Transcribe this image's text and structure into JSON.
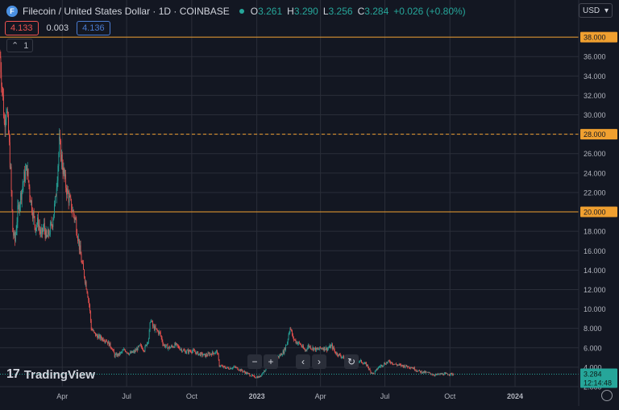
{
  "header": {
    "symbol_icon": "F",
    "symbol_title": "Filecoin / United States Dollar · 1D · COINBASE",
    "ohlc": {
      "o_label": "O",
      "o": "3.261",
      "h_label": "H",
      "h": "3.290",
      "l_label": "L",
      "l": "3.256",
      "c_label": "C",
      "c": "3.284",
      "change": "+0.026 (+0.80%)"
    },
    "sell_price": "4.133",
    "spread": "0.003",
    "buy_price": "4.136",
    "indicators_collapse_label": "1",
    "currency": "USD"
  },
  "toolbar": {
    "zoom_out": "−",
    "zoom_in": "+",
    "scroll_left": "‹",
    "scroll_right": "›",
    "reset": "↻"
  },
  "branding": {
    "logo_mark": "17",
    "logo_text": "TradingView"
  },
  "colors": {
    "background": "#131722",
    "grid": "#2a2e39",
    "up": "#26a69a",
    "down": "#ef5350",
    "level_line": "#f0a030",
    "last_price": "#26a69a"
  },
  "chart_data": {
    "type": "candlestick",
    "ylim": [
      2.0,
      40.0
    ],
    "y_ticks": [
      "2.000",
      "4.000",
      "6.000",
      "8.000",
      "10.000",
      "12.000",
      "14.000",
      "16.000",
      "18.000",
      "20.000",
      "22.000",
      "24.000",
      "26.000",
      "28.000",
      "30.000",
      "32.000",
      "34.000",
      "36.000",
      "38.000"
    ],
    "x_ticks": [
      {
        "label": "Apr",
        "date": "2022-04-01"
      },
      {
        "label": "Jul",
        "date": "2022-07-01"
      },
      {
        "label": "Oct",
        "date": "2022-10-01"
      },
      {
        "label": "2023",
        "date": "2023-01-01"
      },
      {
        "label": "Apr",
        "date": "2023-04-01"
      },
      {
        "label": "Jul",
        "date": "2023-07-01"
      },
      {
        "label": "Oct",
        "date": "2023-10-01"
      },
      {
        "label": "2024",
        "date": "2024-01-01"
      }
    ],
    "x_range": [
      "2022-01-03",
      "2024-03-31"
    ],
    "horizontal_lines": [
      {
        "price": 38.0,
        "style": "solid",
        "label": "38.000"
      },
      {
        "price": 28.0,
        "style": "dashed",
        "label": "28.000"
      },
      {
        "price": 20.0,
        "style": "solid",
        "label": "20.000"
      }
    ],
    "last_price": {
      "price": 3.284,
      "label": "3.284",
      "countdown": "12:14:48"
    },
    "price_path": [
      [
        "2022-01-03",
        36.0
      ],
      [
        "2022-01-06",
        33.0
      ],
      [
        "2022-01-09",
        29.0
      ],
      [
        "2022-01-12",
        31.0
      ],
      [
        "2022-01-15",
        28.0
      ],
      [
        "2022-01-18",
        24.0
      ],
      [
        "2022-01-21",
        18.0
      ],
      [
        "2022-01-24",
        17.0
      ],
      [
        "2022-01-28",
        20.0
      ],
      [
        "2022-02-02",
        22.0
      ],
      [
        "2022-02-06",
        23.5
      ],
      [
        "2022-02-10",
        24.5
      ],
      [
        "2022-02-14",
        22.0
      ],
      [
        "2022-02-18",
        20.0
      ],
      [
        "2022-02-22",
        18.5
      ],
      [
        "2022-02-26",
        19.0
      ],
      [
        "2022-03-02",
        17.5
      ],
      [
        "2022-03-06",
        18.5
      ],
      [
        "2022-03-10",
        17.2
      ],
      [
        "2022-03-14",
        18.0
      ],
      [
        "2022-03-18",
        19.0
      ],
      [
        "2022-03-22",
        21.0
      ],
      [
        "2022-03-26",
        25.0
      ],
      [
        "2022-03-28",
        27.0
      ],
      [
        "2022-03-31",
        25.5
      ],
      [
        "2022-04-04",
        23.5
      ],
      [
        "2022-04-08",
        22.0
      ],
      [
        "2022-04-12",
        21.0
      ],
      [
        "2022-04-16",
        20.0
      ],
      [
        "2022-04-20",
        19.0
      ],
      [
        "2022-04-24",
        17.0
      ],
      [
        "2022-04-28",
        15.0
      ],
      [
        "2022-05-02",
        13.5
      ],
      [
        "2022-05-06",
        12.0
      ],
      [
        "2022-05-09",
        10.5
      ],
      [
        "2022-05-12",
        8.0
      ],
      [
        "2022-05-16",
        7.5
      ],
      [
        "2022-05-20",
        7.2
      ],
      [
        "2022-05-26",
        7.0
      ],
      [
        "2022-06-02",
        6.8
      ],
      [
        "2022-06-10",
        6.0
      ],
      [
        "2022-06-14",
        5.2
      ],
      [
        "2022-06-20",
        5.3
      ],
      [
        "2022-06-28",
        5.8
      ],
      [
        "2022-07-05",
        5.4
      ],
      [
        "2022-07-12",
        5.6
      ],
      [
        "2022-07-20",
        6.2
      ],
      [
        "2022-07-26",
        5.8
      ],
      [
        "2022-08-01",
        7.0
      ],
      [
        "2022-08-04",
        9.0
      ],
      [
        "2022-08-07",
        8.2
      ],
      [
        "2022-08-12",
        7.8
      ],
      [
        "2022-08-17",
        7.5
      ],
      [
        "2022-08-22",
        6.3
      ],
      [
        "2022-08-30",
        6.0
      ],
      [
        "2022-09-08",
        6.3
      ],
      [
        "2022-09-15",
        5.9
      ],
      [
        "2022-09-22",
        5.6
      ],
      [
        "2022-10-01",
        5.7
      ],
      [
        "2022-10-10",
        5.4
      ],
      [
        "2022-10-20",
        5.2
      ],
      [
        "2022-10-28",
        5.4
      ],
      [
        "2022-11-06",
        5.6
      ],
      [
        "2022-11-09",
        4.2
      ],
      [
        "2022-11-15",
        4.0
      ],
      [
        "2022-11-22",
        3.9
      ],
      [
        "2022-12-01",
        4.0
      ],
      [
        "2022-12-12",
        3.6
      ],
      [
        "2022-12-20",
        3.3
      ],
      [
        "2022-12-28",
        3.0
      ],
      [
        "2023-01-05",
        3.0
      ],
      [
        "2023-01-12",
        3.7
      ],
      [
        "2023-01-18",
        4.4
      ],
      [
        "2023-01-25",
        5.0
      ],
      [
        "2023-02-01",
        5.1
      ],
      [
        "2023-02-08",
        5.6
      ],
      [
        "2023-02-13",
        6.6
      ],
      [
        "2023-02-17",
        8.2
      ],
      [
        "2023-02-21",
        7.0
      ],
      [
        "2023-02-26",
        6.6
      ],
      [
        "2023-03-03",
        6.4
      ],
      [
        "2023-03-10",
        5.7
      ],
      [
        "2023-03-15",
        6.2
      ],
      [
        "2023-03-20",
        6.0
      ],
      [
        "2023-03-27",
        5.8
      ],
      [
        "2023-04-03",
        6.0
      ],
      [
        "2023-04-10",
        5.9
      ],
      [
        "2023-04-17",
        6.2
      ],
      [
        "2023-04-22",
        5.5
      ],
      [
        "2023-04-29",
        5.2
      ],
      [
        "2023-05-08",
        4.8
      ],
      [
        "2023-05-18",
        4.7
      ],
      [
        "2023-05-28",
        4.6
      ],
      [
        "2023-06-06",
        4.2
      ],
      [
        "2023-06-10",
        3.6
      ],
      [
        "2023-06-15",
        3.3
      ],
      [
        "2023-06-22",
        4.0
      ],
      [
        "2023-07-01",
        4.4
      ],
      [
        "2023-07-08",
        4.6
      ],
      [
        "2023-07-15",
        4.3
      ],
      [
        "2023-07-22",
        4.2
      ],
      [
        "2023-07-31",
        4.1
      ],
      [
        "2023-08-08",
        4.0
      ],
      [
        "2023-08-17",
        3.6
      ],
      [
        "2023-08-24",
        3.5
      ],
      [
        "2023-09-01",
        3.4
      ],
      [
        "2023-09-10",
        3.2
      ],
      [
        "2023-09-20",
        3.3
      ],
      [
        "2023-09-28",
        3.3
      ],
      [
        "2023-10-06",
        3.28
      ]
    ]
  }
}
